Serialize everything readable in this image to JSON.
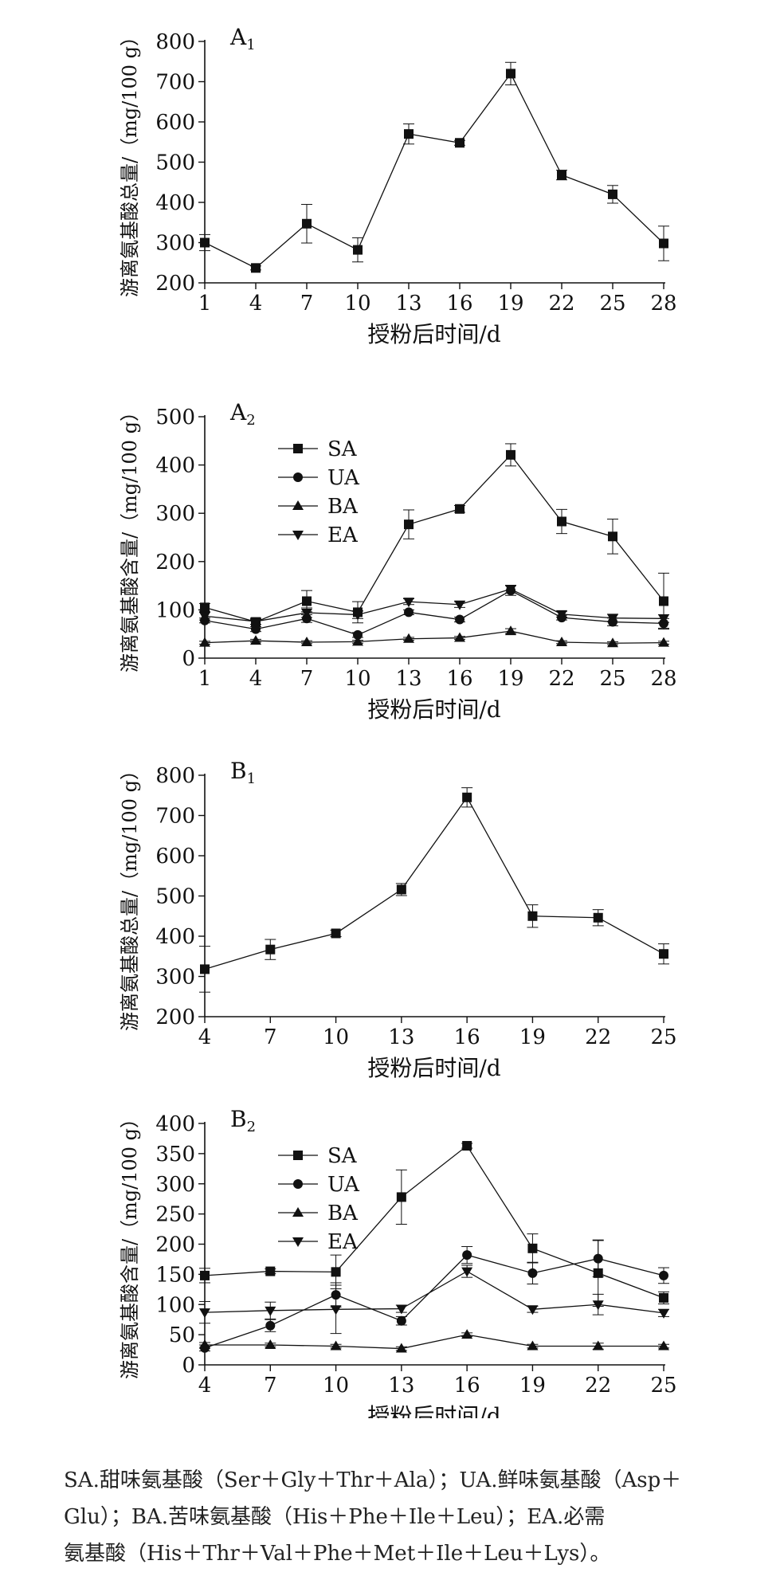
{
  "caption_lines": [
    "SA.甜味氨基酸（Ser＋Gly＋Thr＋Ala）；UA.鲜味氨基酸（Asp＋",
    "Glu）；BA.苦味氨基酸（His＋Phe＋Ile＋Leu）；EA.必需",
    "氨基酸（His＋Thr＋Val＋Phe＋Met＋Ile＋Leu＋Lys）。"
  ],
  "chart_data": [
    {
      "type": "line",
      "panel_label": "A",
      "panel_sub": "1",
      "xlabel": "授粉后时间/d",
      "ylabel": "游离氨基酸总量/（mg/100 g）",
      "x": [
        1,
        4,
        7,
        10,
        13,
        16,
        19,
        22,
        25,
        28
      ],
      "xlim": [
        1,
        28
      ],
      "ylim": [
        200,
        800
      ],
      "yticks": [
        200,
        300,
        400,
        500,
        600,
        700,
        800
      ],
      "grid": false,
      "legend": null,
      "series": [
        {
          "name": "",
          "marker": "square",
          "values": [
            300,
            237,
            347,
            282,
            570,
            548,
            720,
            468,
            420,
            298
          ],
          "errors": [
            20,
            5,
            48,
            30,
            25,
            6,
            28,
            12,
            22,
            43
          ]
        }
      ]
    },
    {
      "type": "line",
      "panel_label": "A",
      "panel_sub": "2",
      "xlabel": "授粉后时间/d",
      "ylabel": "游离氨基酸含量/（mg/100 g）",
      "x": [
        1,
        4,
        7,
        10,
        13,
        16,
        19,
        22,
        25,
        28
      ],
      "xlim": [
        1,
        28
      ],
      "ylim": [
        0,
        500
      ],
      "yticks": [
        0,
        100,
        200,
        300,
        400,
        500
      ],
      "grid": false,
      "legend": "top-left",
      "series": [
        {
          "name": "SA",
          "marker": "square",
          "values": [
            105,
            75,
            118,
            95,
            277,
            309,
            421,
            283,
            252,
            118
          ],
          "errors": [
            8,
            5,
            22,
            22,
            30,
            7,
            23,
            25,
            36,
            58
          ]
        },
        {
          "name": "UA",
          "marker": "circle",
          "values": [
            78,
            60,
            82,
            48,
            95,
            80,
            140,
            84,
            75,
            72
          ],
          "errors": [
            5,
            5,
            8,
            5,
            5,
            5,
            10,
            5,
            8,
            10
          ]
        },
        {
          "name": "BA",
          "marker": "triangle-up",
          "values": [
            32,
            36,
            33,
            34,
            40,
            42,
            56,
            33,
            31,
            32
          ],
          "errors": [
            3,
            3,
            3,
            3,
            3,
            3,
            5,
            3,
            3,
            3
          ]
        },
        {
          "name": "EA",
          "marker": "triangle-down",
          "values": [
            87,
            76,
            94,
            90,
            117,
            111,
            143,
            91,
            83,
            82
          ],
          "errors": [
            8,
            6,
            10,
            8,
            6,
            6,
            8,
            6,
            8,
            8
          ]
        }
      ]
    },
    {
      "type": "line",
      "panel_label": "B",
      "panel_sub": "1",
      "xlabel": "授粉后时间/d",
      "ylabel": "游离氨基酸总量/（mg/100 g）",
      "x": [
        4,
        7,
        10,
        13,
        16,
        19,
        22,
        25
      ],
      "xlim": [
        4,
        25
      ],
      "ylim": [
        200,
        800
      ],
      "yticks": [
        200,
        300,
        400,
        500,
        600,
        700,
        800
      ],
      "grid": false,
      "legend": null,
      "series": [
        {
          "name": "",
          "marker": "square",
          "values": [
            318,
            367,
            407,
            516,
            745,
            450,
            446,
            356
          ],
          "errors": [
            57,
            25,
            8,
            15,
            24,
            28,
            20,
            25
          ]
        }
      ]
    },
    {
      "type": "line",
      "panel_label": "B",
      "panel_sub": "2",
      "xlabel": "授粉后时间/d",
      "ylabel": "游离氨基酸含量/（mg/100 g）",
      "x": [
        4,
        7,
        10,
        13,
        16,
        19,
        22,
        25
      ],
      "xlim": [
        4,
        25
      ],
      "ylim": [
        0,
        400
      ],
      "yticks": [
        0,
        50,
        100,
        150,
        200,
        250,
        300,
        350,
        400
      ],
      "grid": false,
      "legend": "top-left",
      "series": [
        {
          "name": "SA",
          "marker": "square",
          "values": [
            148,
            155,
            154,
            278,
            363,
            193,
            152,
            111
          ],
          "errors": [
            12,
            4,
            28,
            45,
            4,
            24,
            55,
            10
          ]
        },
        {
          "name": "UA",
          "marker": "circle",
          "values": [
            28,
            65,
            116,
            73,
            182,
            152,
            176,
            148
          ],
          "errors": [
            5,
            10,
            20,
            7,
            14,
            18,
            30,
            13
          ]
        },
        {
          "name": "BA",
          "marker": "triangle-up",
          "values": [
            33,
            33,
            31,
            27,
            50,
            31,
            31,
            31
          ],
          "errors": [
            4,
            3,
            3,
            3,
            3,
            3,
            5,
            3
          ]
        },
        {
          "name": "EA",
          "marker": "triangle-down",
          "values": [
            87,
            90,
            92,
            93,
            155,
            92,
            100,
            86
          ],
          "errors": [
            18,
            14,
            40,
            6,
            10,
            5,
            17,
            6
          ]
        }
      ]
    }
  ]
}
